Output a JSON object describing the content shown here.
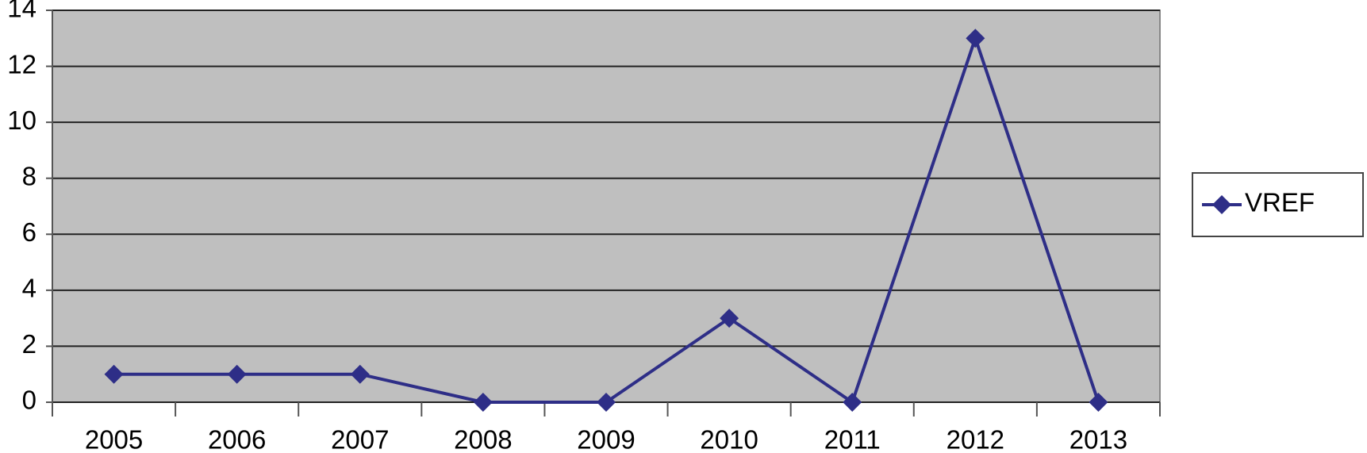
{
  "chart_data": {
    "type": "line",
    "categories": [
      "2005",
      "2006",
      "2007",
      "2008",
      "2009",
      "2010",
      "2011",
      "2012",
      "2013"
    ],
    "series": [
      {
        "name": "VREF",
        "color": "#2e2e87",
        "values": [
          1,
          1,
          1,
          0,
          0,
          3,
          0,
          13,
          0
        ]
      }
    ],
    "ylim": [
      0,
      14
    ],
    "yticks": [
      0,
      2,
      4,
      6,
      8,
      10,
      12,
      14
    ],
    "grid": true,
    "legend": "right"
  }
}
